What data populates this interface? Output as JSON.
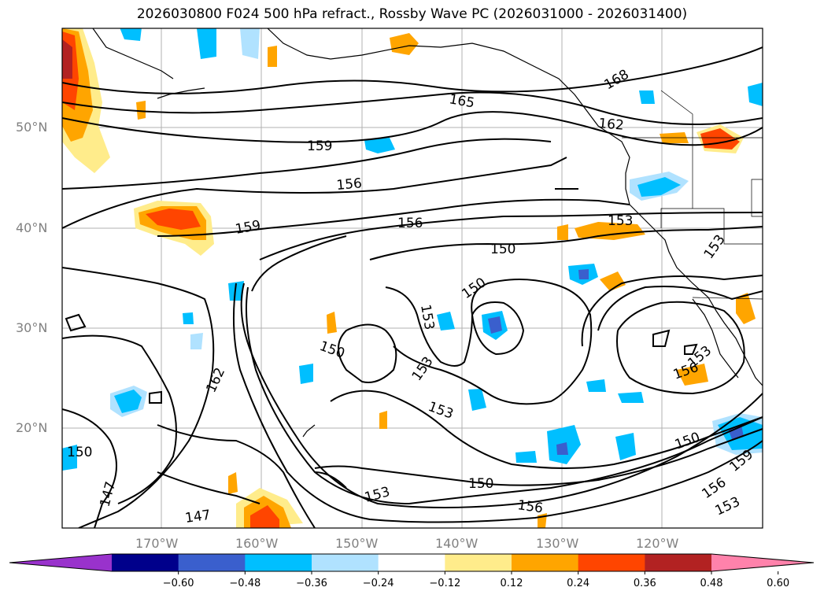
{
  "title": "2026030800 F024 500 hPa refract., Rossby Wave PC (2026031000 - 2026031400)",
  "lat_labels": [
    "50°N",
    "40°N",
    "30°N",
    "20°N"
  ],
  "lon_labels": [
    "170°W",
    "160°W",
    "150°W",
    "140°W",
    "130°W",
    "120°W"
  ],
  "contour_labels": [
    "165",
    "168",
    "162",
    "159",
    "156",
    "156",
    "159",
    "153",
    "153",
    "150",
    "150",
    "153",
    "150",
    "153",
    "153",
    "162",
    "150",
    "156",
    "150",
    "159",
    "156",
    "153",
    "153",
    "156",
    "150",
    "147",
    "147",
    "153"
  ],
  "colorbar": {
    "colors": [
      "#9932cc",
      "#00008b",
      "#3a5fcd",
      "#00bfff",
      "#b0e2ff",
      "#ffffff",
      "#ffec8b",
      "#ffa500",
      "#ff4500",
      "#b22222",
      "#ff82ab"
    ],
    "tick_labels": [
      "−0.60",
      "−0.48",
      "−0.36",
      "−0.24",
      "−0.12",
      "0.12",
      "0.24",
      "0.36",
      "0.48",
      "0.60"
    ]
  }
}
